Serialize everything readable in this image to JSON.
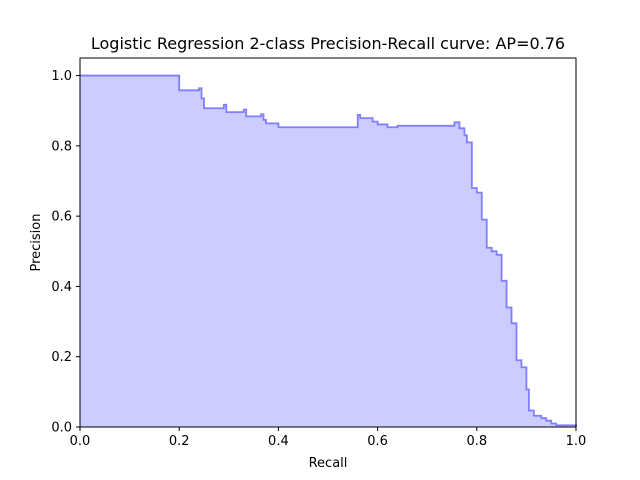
{
  "chart_data": {
    "type": "area",
    "title": "Logistic Regression 2-class Precision-Recall curve: AP=0.76",
    "xlabel": "Recall",
    "ylabel": "Precision",
    "xlim": [
      0.0,
      1.0
    ],
    "ylim": [
      0.0,
      1.05
    ],
    "x_ticks": [
      0.0,
      0.2,
      0.4,
      0.6,
      0.8,
      1.0
    ],
    "x_tick_labels": [
      "0.0",
      "0.2",
      "0.4",
      "0.6",
      "0.8",
      "1.0"
    ],
    "y_ticks": [
      0.0,
      0.2,
      0.4,
      0.6,
      0.8,
      1.0
    ],
    "y_tick_labels": [
      "0.0",
      "0.2",
      "0.4",
      "0.6",
      "0.8",
      "1.0"
    ],
    "grid": false,
    "step": "post",
    "line_color": "#7f7fff",
    "fill_color": "#ccccff",
    "series": [
      {
        "recall": [
          0.0,
          0.195,
          0.2,
          0.24,
          0.245,
          0.25,
          0.29,
          0.295,
          0.33,
          0.335,
          0.365,
          0.37,
          0.375,
          0.4,
          0.56,
          0.565,
          0.59,
          0.6,
          0.62,
          0.64,
          0.755,
          0.765,
          0.775,
          0.78,
          0.79,
          0.8,
          0.81,
          0.82,
          0.83,
          0.84,
          0.85,
          0.86,
          0.87,
          0.88,
          0.89,
          0.9,
          0.905,
          0.915,
          0.93,
          0.94,
          0.95,
          0.96,
          1.0
        ],
        "precision": [
          1.0,
          1.0,
          0.958,
          0.964,
          0.935,
          0.907,
          0.917,
          0.896,
          0.903,
          0.884,
          0.89,
          0.874,
          0.864,
          0.853,
          0.888,
          0.879,
          0.869,
          0.861,
          0.853,
          0.857,
          0.867,
          0.85,
          0.83,
          0.81,
          0.68,
          0.667,
          0.59,
          0.51,
          0.5,
          0.49,
          0.416,
          0.34,
          0.295,
          0.19,
          0.17,
          0.107,
          0.047,
          0.032,
          0.025,
          0.018,
          0.01,
          0.005,
          0.0
        ]
      }
    ]
  }
}
